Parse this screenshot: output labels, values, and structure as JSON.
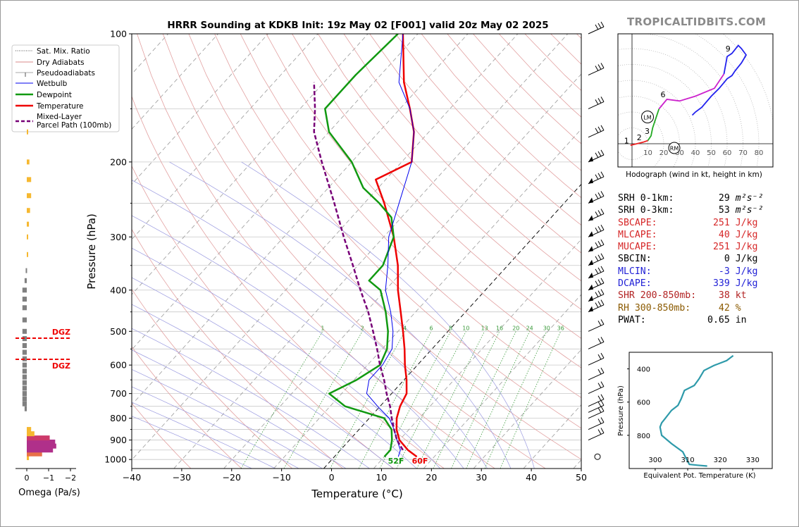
{
  "header": {
    "title": "HRRR Sounding at KDKB Init: 19z May 02 [F001] valid 20z May 02 2025",
    "brand": "TROPICALTIDBITS.COM"
  },
  "skewt": {
    "xlabel": "Temperature (°C)",
    "ylabel": "Pressure (hPa)",
    "x_ticks": [
      "−40",
      "−30",
      "−20",
      "−10",
      "0",
      "10",
      "20",
      "30",
      "40",
      "50"
    ],
    "pressure_ticks": [
      "100",
      "200",
      "300",
      "400",
      "500",
      "600",
      "700",
      "800",
      "900",
      "1000"
    ],
    "mixing_ratio_labels": [
      "1",
      "2",
      "4",
      "6",
      "8",
      "10",
      "13",
      "16",
      "20",
      "24",
      "30",
      "36"
    ],
    "surface_dewpoint_label": "52F",
    "surface_temp_label": "60F"
  },
  "legend": {
    "items": [
      "Sat. Mix. Ratio",
      "Dry Adiabats",
      "Pseudoadiabats",
      "Wetbulb",
      "Dewpoint",
      "Temperature",
      "Mixed-Layer",
      "Parcel Path (100mb)"
    ]
  },
  "omega": {
    "xlabel": "Omega (Pa/s)",
    "ticks": [
      "0",
      "−1",
      "−2"
    ],
    "dgz_label": "DGZ"
  },
  "hodograph": {
    "caption": "Hodograph (wind in kt, height in km)",
    "ring_labels": [
      "10",
      "20",
      "30",
      "40",
      "50",
      "60",
      "70",
      "80"
    ],
    "height_labels": [
      "1",
      "2",
      "3",
      "6",
      "9"
    ],
    "lm_label": "LM",
    "rm_label": "RM"
  },
  "stats": [
    {
      "label": "SRH 0-1km:",
      "value": "29",
      "unit": "m²s⁻²",
      "color": "#000000"
    },
    {
      "label": "SRH 0-3km:",
      "value": "53",
      "unit": "m²s⁻²",
      "color": "#000000"
    },
    {
      "label": "SBCAPE:",
      "value": "251",
      "unit": "J/kg",
      "color": "#d62728"
    },
    {
      "label": "MLCAPE:",
      "value": "40",
      "unit": "J/kg",
      "color": "#d62728"
    },
    {
      "label": "MUCAPE:",
      "value": "251",
      "unit": "J/kg",
      "color": "#d62728"
    },
    {
      "label": "SBCIN:",
      "value": "0",
      "unit": "J/kg",
      "color": "#000000"
    },
    {
      "label": "MLCIN:",
      "value": "-3",
      "unit": "J/kg",
      "color": "#1f1fd6"
    },
    {
      "label": "DCAPE:",
      "value": "339",
      "unit": "J/kg",
      "color": "#1f1fd6"
    },
    {
      "label": "SHR 200-850mb:",
      "value": "38",
      "unit": "kt",
      "color": "#b22222"
    },
    {
      "label": "RH 300-850mb:",
      "value": "42",
      "unit": "%",
      "color": "#8b5a00"
    },
    {
      "label": "PWAT:",
      "value": "0.65",
      "unit": "in",
      "color": "#000000"
    }
  ],
  "theta_e": {
    "ylabel": "Pressure (hPa)",
    "xlabel": "Equivalent Pot. Temperature (K)",
    "x_ticks": [
      "300",
      "310",
      "320",
      "330"
    ],
    "y_ticks": [
      "400",
      "600",
      "800"
    ]
  },
  "chart_data": [
    {
      "type": "line",
      "title": "HRRR Sounding at KDKB Init: 19z May 02 [F001] valid 20z May 02 2025",
      "xlabel": "Temperature (°C)",
      "ylabel": "Pressure (hPa)",
      "xlim": [
        -40,
        50
      ],
      "ylim": [
        1050,
        100
      ],
      "y_scale": "log",
      "skew": true,
      "grid": true,
      "legend_position": "upper-left",
      "series": [
        {
          "name": "Temperature",
          "color": "#ee0000",
          "points": [
            [
              985,
              16.5
            ],
            [
              950,
              13.5
            ],
            [
              900,
              10
            ],
            [
              850,
              7.5
            ],
            [
              800,
              5.5
            ],
            [
              750,
              4.0
            ],
            [
              700,
              3.0
            ],
            [
              650,
              0.5
            ],
            [
              600,
              -2.5
            ],
            [
              550,
              -5.5
            ],
            [
              500,
              -9
            ],
            [
              450,
              -13
            ],
            [
              400,
              -17.5
            ],
            [
              350,
              -22
            ],
            [
              300,
              -28
            ],
            [
              250,
              -36
            ],
            [
              220,
              -42
            ],
            [
              200,
              -38
            ],
            [
              170,
              -43
            ],
            [
              150,
              -48
            ],
            [
              130,
              -54
            ],
            [
              100,
              -63
            ]
          ]
        },
        {
          "name": "Dewpoint",
          "color": "#119911",
          "points": [
            [
              985,
              10
            ],
            [
              950,
              10
            ],
            [
              900,
              8.5
            ],
            [
              850,
              6.5
            ],
            [
              800,
              3.0
            ],
            [
              750,
              -7
            ],
            [
              700,
              -12.5
            ],
            [
              650,
              -9.5
            ],
            [
              600,
              -7.5
            ],
            [
              550,
              -9
            ],
            [
              500,
              -12
            ],
            [
              450,
              -16
            ],
            [
              400,
              -21
            ],
            [
              380,
              -25
            ],
            [
              350,
              -25
            ],
            [
              300,
              -28
            ],
            [
              270,
              -32
            ],
            [
              250,
              -37
            ],
            [
              230,
              -43
            ],
            [
              200,
              -50
            ],
            [
              170,
              -60
            ],
            [
              150,
              -65
            ],
            [
              125,
              -65
            ],
            [
              100,
              -64
            ]
          ]
        },
        {
          "name": "Wetbulb",
          "color": "#0000ee",
          "points": [
            [
              985,
              12.8
            ],
            [
              950,
              12
            ],
            [
              900,
              9.5
            ],
            [
              850,
              7
            ],
            [
              800,
              4.0
            ],
            [
              750,
              -0.5
            ],
            [
              700,
              -5
            ],
            [
              650,
              -7
            ],
            [
              600,
              -7
            ],
            [
              550,
              -8
            ],
            [
              500,
              -11
            ],
            [
              450,
              -15
            ],
            [
              400,
              -20
            ],
            [
              350,
              -24
            ],
            [
              300,
              -29
            ],
            [
              200,
              -38
            ],
            [
              170,
              -43
            ],
            [
              150,
              -48
            ],
            [
              130,
              -55
            ],
            [
              100,
              -63
            ]
          ]
        },
        {
          "name": "Mixed-Layer Parcel Path (100mb)",
          "color": "#770077",
          "points": [
            [
              950,
              12.5
            ],
            [
              900,
              9.5
            ],
            [
              850,
              7
            ],
            [
              800,
              4.5
            ],
            [
              750,
              2
            ],
            [
              700,
              -1
            ],
            [
              650,
              -4
            ],
            [
              600,
              -7.5
            ],
            [
              550,
              -11
            ],
            [
              500,
              -15
            ],
            [
              450,
              -19.5
            ],
            [
              400,
              -25
            ],
            [
              350,
              -31
            ],
            [
              300,
              -38
            ],
            [
              250,
              -46
            ],
            [
              200,
              -56
            ],
            [
              170,
              -63
            ],
            [
              150,
              -67
            ],
            [
              130,
              -72
            ]
          ]
        }
      ]
    },
    {
      "type": "bar",
      "title": "",
      "xlabel": "Omega (Pa/s)",
      "ylabel": "",
      "xlim": [
        0.25,
        -2.25
      ],
      "series": [
        {
          "name": "",
          "points": [
            [
              990,
              -0.1
            ],
            [
              970,
              -0.7
            ],
            [
              950,
              -1.2
            ],
            [
              930,
              -1.35
            ],
            [
              910,
              -1.3
            ],
            [
              890,
              -1.05
            ],
            [
              870,
              -0.35
            ],
            [
              850,
              -0.2
            ],
            [
              760,
              0.1
            ],
            [
              740,
              0.2
            ],
            [
              720,
              0.2
            ],
            [
              700,
              0.2
            ],
            [
              680,
              0.2
            ],
            [
              660,
              0.2
            ],
            [
              640,
              0.2
            ],
            [
              620,
              0.2
            ],
            [
              600,
              0.2
            ],
            [
              580,
              0.2
            ],
            [
              560,
              0.2
            ],
            [
              540,
              0.2
            ],
            [
              520,
              0.2
            ],
            [
              500,
              0.2
            ],
            [
              470,
              0.2
            ],
            [
              440,
              0.2
            ],
            [
              420,
              0.2
            ],
            [
              400,
              0.2
            ],
            [
              380,
              0.1
            ],
            [
              360,
              0.05
            ],
            [
              330,
              -0.02
            ],
            [
              300,
              -0.05
            ],
            [
              280,
              -0.1
            ],
            [
              260,
              -0.15
            ],
            [
              240,
              -0.2
            ],
            [
              220,
              -0.2
            ],
            [
              200,
              -0.12
            ],
            [
              170,
              -0.05
            ]
          ]
        }
      ]
    },
    {
      "type": "line",
      "title": "",
      "xlabel": "",
      "ylabel": "",
      "xlim": [
        -10,
        90
      ],
      "ylim": [
        -10,
        65
      ],
      "series": [
        {
          "name": "",
          "points": [
            [
              -1,
              -1
            ],
            [
              3,
              0
            ],
            [
              7,
              1
            ],
            [
              10,
              2
            ],
            [
              12,
              5
            ],
            [
              13,
              10
            ],
            [
              17,
              22
            ],
            [
              22,
              28
            ],
            [
              30,
              27
            ],
            [
              40,
              30
            ],
            [
              52,
              35
            ],
            [
              58,
              44
            ],
            [
              60,
              55
            ],
            [
              63,
              57
            ],
            [
              67,
              62
            ],
            [
              69,
              60
            ],
            [
              72,
              56
            ],
            [
              69,
              51
            ],
            [
              65,
              46
            ],
            [
              63,
              43
            ],
            [
              60,
              41
            ],
            [
              55,
              35
            ],
            [
              50,
              30
            ],
            [
              44,
              23
            ],
            [
              40,
              20
            ],
            [
              38,
              18
            ]
          ]
        }
      ]
    },
    {
      "type": "line",
      "title": "",
      "xlabel": "Equivalent Pot. Temperature (K)",
      "ylabel": "Pressure (hPa)",
      "xlim": [
        292,
        336
      ],
      "ylim": [
        1000,
        300
      ],
      "series": [
        {
          "name": "",
          "points": [
            [
              985,
              316
            ],
            [
              980,
              313
            ],
            [
              975,
              310.5
            ],
            [
              950,
              309.8
            ],
            [
              900,
              308.5
            ],
            [
              850,
              305
            ],
            [
              800,
              302
            ],
            [
              750,
              301.5
            ],
            [
              725,
              302
            ],
            [
              700,
              303
            ],
            [
              650,
              305
            ],
            [
              620,
              307
            ],
            [
              580,
              308
            ],
            [
              530,
              309
            ],
            [
              500,
              312
            ],
            [
              460,
              313.5
            ],
            [
              410,
              315
            ],
            [
              380,
              318
            ],
            [
              350,
              322
            ],
            [
              320,
              324
            ]
          ]
        }
      ]
    }
  ]
}
